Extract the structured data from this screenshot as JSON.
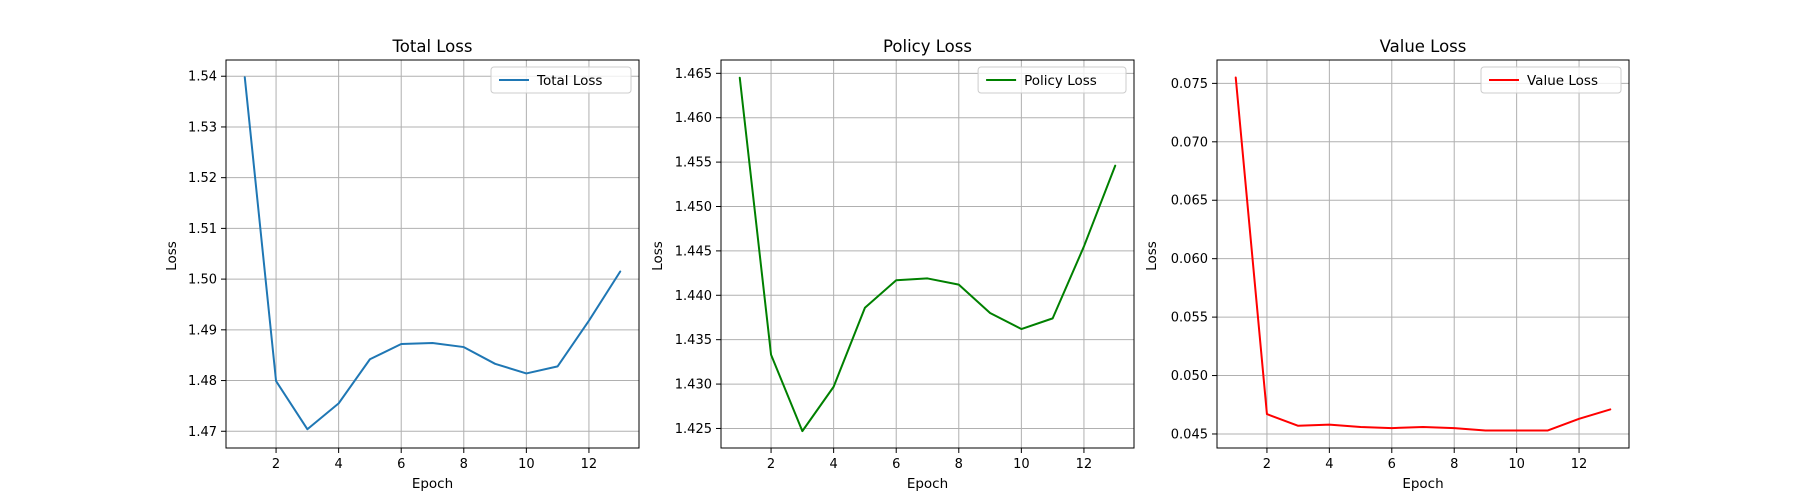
{
  "chart_data": [
    {
      "type": "line",
      "title": "Total Loss",
      "xlabel": "Epoch",
      "ylabel": "Loss",
      "x": [
        1,
        2,
        3,
        4,
        5,
        6,
        7,
        8,
        9,
        10,
        11,
        12,
        13
      ],
      "series": [
        {
          "name": "Total Loss",
          "color": "#1f77b4",
          "values": [
            1.5398,
            1.4799,
            1.4704,
            1.4755,
            1.4842,
            1.4872,
            1.4874,
            1.4866,
            1.4833,
            1.4814,
            1.4828,
            1.4918,
            1.5015
          ]
        }
      ],
      "xlim": [
        0.4,
        13.6
      ],
      "ylim": [
        1.4667,
        1.5432
      ],
      "xticks": [
        2,
        4,
        6,
        8,
        10,
        12
      ],
      "yticks": [
        1.47,
        1.48,
        1.49,
        1.5,
        1.51,
        1.52,
        1.53,
        1.54
      ],
      "ytick_labels": [
        "1.47",
        "1.48",
        "1.49",
        "1.50",
        "1.51",
        "1.52",
        "1.53",
        "1.54"
      ],
      "grid": true,
      "legend": "upper right"
    },
    {
      "type": "line",
      "title": "Policy Loss",
      "xlabel": "Epoch",
      "ylabel": "Loss",
      "x": [
        1,
        2,
        3,
        4,
        5,
        6,
        7,
        8,
        9,
        10,
        11,
        12,
        13
      ],
      "series": [
        {
          "name": "Policy Loss",
          "color": "#008000",
          "values": [
            1.4645,
            1.4333,
            1.4247,
            1.4297,
            1.4386,
            1.4417,
            1.4419,
            1.4412,
            1.438,
            1.4362,
            1.4374,
            1.4455,
            1.4546
          ]
        }
      ],
      "xlim": [
        0.4,
        13.6
      ],
      "ylim": [
        1.4228,
        1.4665
      ],
      "xticks": [
        2,
        4,
        6,
        8,
        10,
        12
      ],
      "yticks": [
        1.425,
        1.43,
        1.435,
        1.44,
        1.445,
        1.45,
        1.455,
        1.46,
        1.465
      ],
      "ytick_labels": [
        "1.425",
        "1.430",
        "1.435",
        "1.440",
        "1.445",
        "1.450",
        "1.455",
        "1.460",
        "1.465"
      ],
      "grid": true,
      "legend": "upper right"
    },
    {
      "type": "line",
      "title": "Value Loss",
      "xlabel": "Epoch",
      "ylabel": "Loss",
      "x": [
        1,
        2,
        3,
        4,
        5,
        6,
        7,
        8,
        9,
        10,
        11,
        12,
        13
      ],
      "series": [
        {
          "name": "Value Loss",
          "color": "#ff0000",
          "values": [
            0.0755,
            0.0467,
            0.0457,
            0.0458,
            0.0456,
            0.0455,
            0.0456,
            0.0455,
            0.0453,
            0.0453,
            0.0453,
            0.0463,
            0.0471
          ]
        }
      ],
      "xlim": [
        0.4,
        13.6
      ],
      "ylim": [
        0.0438,
        0.077
      ],
      "xticks": [
        2,
        4,
        6,
        8,
        10,
        12
      ],
      "yticks": [
        0.045,
        0.05,
        0.055,
        0.06,
        0.065,
        0.07,
        0.075
      ],
      "ytick_labels": [
        "0.045",
        "0.050",
        "0.055",
        "0.060",
        "0.065",
        "0.070",
        "0.075"
      ],
      "grid": true,
      "legend": "upper right"
    }
  ]
}
